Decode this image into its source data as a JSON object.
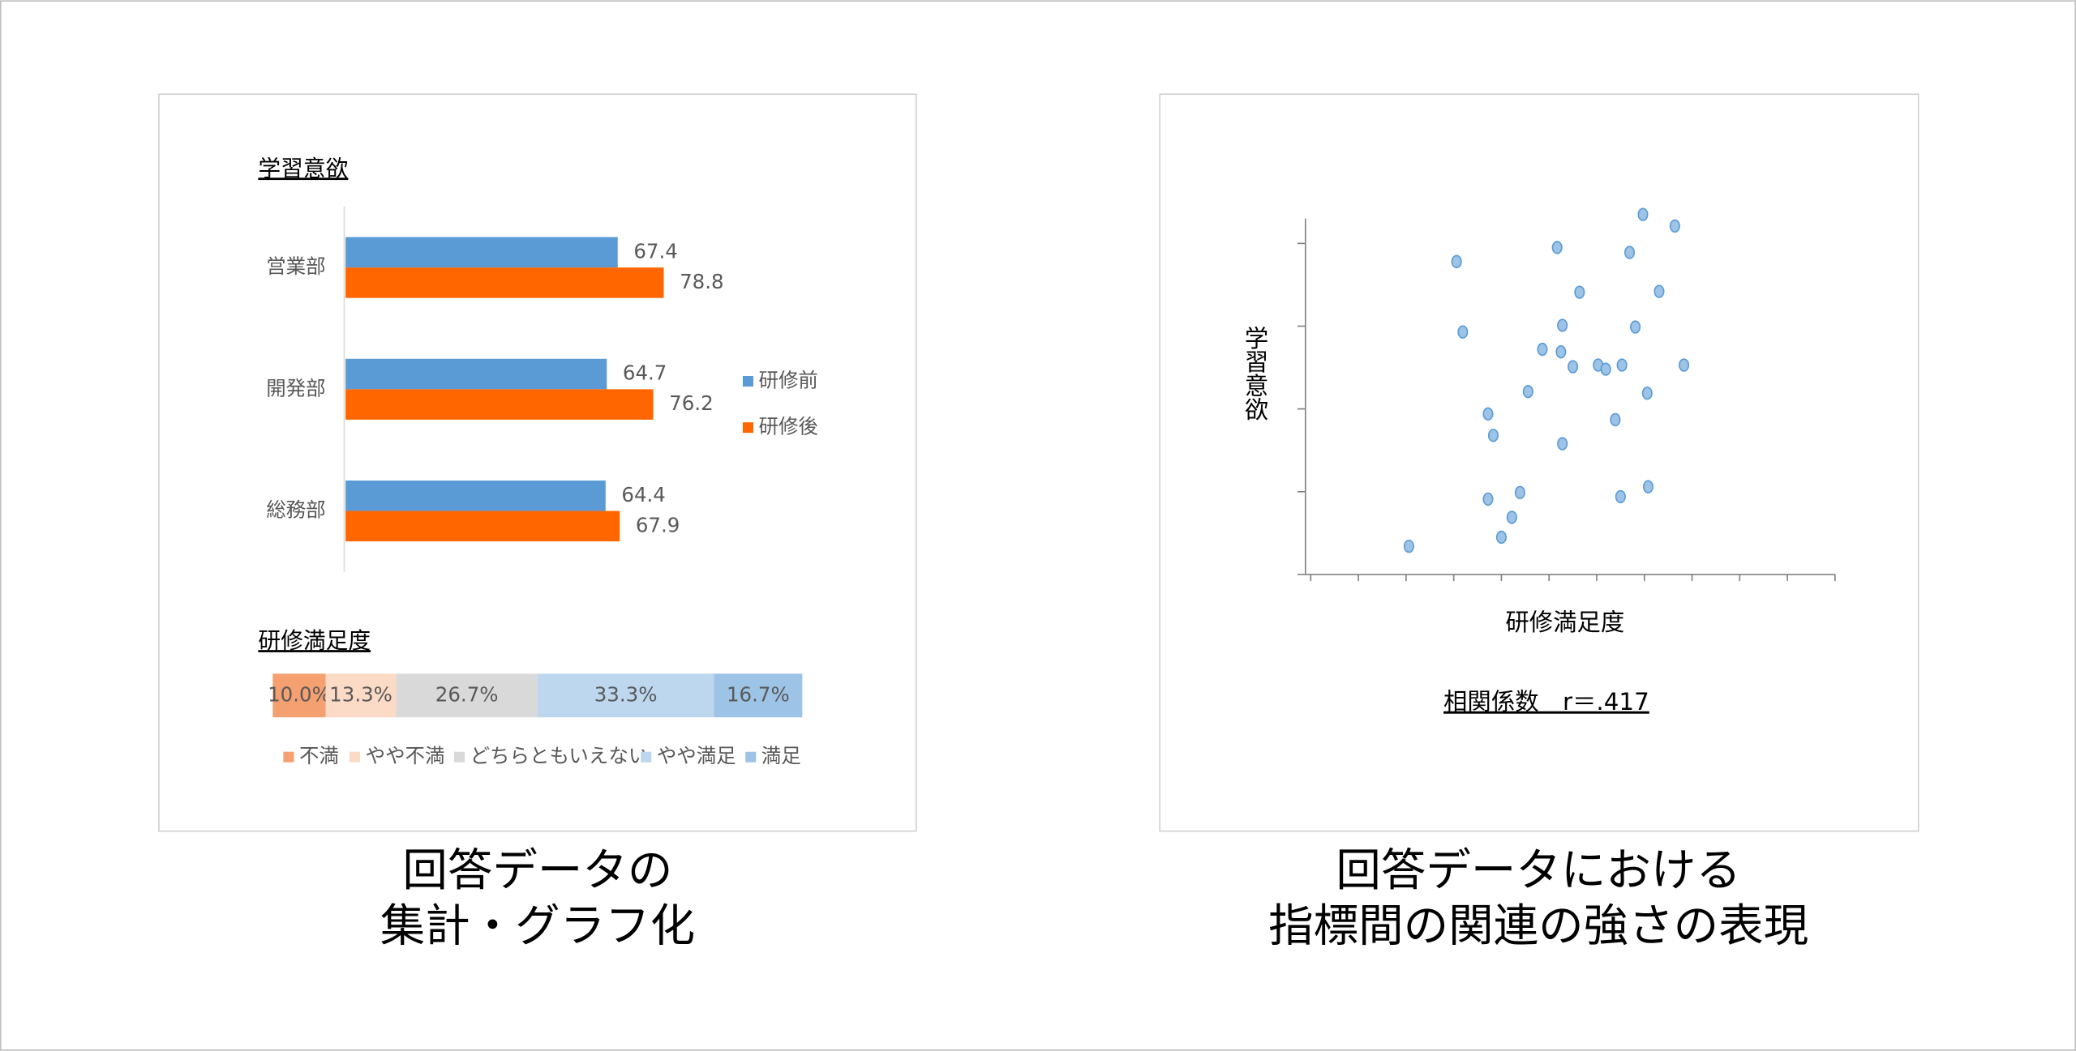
{
  "captions": [
    [
      "回答データの",
      "集計・グラフ化"
    ],
    [
      "回答データにおける",
      "指標間の関連の強さの表現"
    ]
  ],
  "chart_data": [
    {
      "type": "hbar",
      "title": "学習意欲",
      "categories": [
        "営業部",
        "開発部",
        "総務部"
      ],
      "series": [
        {
          "name": "研修前",
          "color": "#5b9bd5",
          "values": [
            67.4,
            64.7,
            64.4
          ]
        },
        {
          "name": "研修後",
          "color": "#ff6600",
          "values": [
            78.8,
            76.2,
            67.9
          ]
        }
      ],
      "xlim": [
        0,
        100
      ],
      "legend": "right"
    },
    {
      "type": "stacked100",
      "title": "研修満足度",
      "series": [
        {
          "name": "不満",
          "color": "#f4a070",
          "values": [
            10.0
          ],
          "value_labels": [
            "10.0%"
          ]
        },
        {
          "name": "やや不満",
          "color": "#fbdac6",
          "values": [
            13.3
          ],
          "value_labels": [
            "13.3%"
          ]
        },
        {
          "name": "どちらともいえない",
          "color": "#d9d9d9",
          "values": [
            26.7
          ],
          "value_labels": [
            "26.7%"
          ]
        },
        {
          "name": "やや満足",
          "color": "#bdd7ee",
          "values": [
            33.3
          ],
          "value_labels": [
            "33.3%"
          ]
        },
        {
          "name": "満足",
          "color": "#9dc3e6",
          "values": [
            16.7
          ],
          "value_labels": [
            "16.7%"
          ]
        }
      ],
      "xlim": [
        0,
        100
      ],
      "legend": "bottom"
    },
    {
      "type": "scatter",
      "x_label": "研修満足度",
      "y_label": "学習意欲",
      "annotation": "相関係数　r＝.417",
      "color": "#9dc3e6",
      "tick_labels": false,
      "xlim": [
        0,
        11
      ],
      "xticks": [
        0,
        1,
        2,
        3,
        4,
        5,
        6,
        7,
        8,
        9,
        10,
        11
      ],
      "ylim": [
        0,
        4.3
      ],
      "yticks": [
        0,
        1,
        2,
        3,
        4
      ],
      "x": [
        2.06,
        3.06,
        3.19,
        3.72,
        3.83,
        3.72,
        4.0,
        4.22,
        4.39,
        4.56,
        4.86,
        5.17,
        5.28,
        5.25,
        5.28,
        5.5,
        5.64,
        6.03,
        6.19,
        6.39,
        6.5,
        6.53,
        6.69,
        6.81,
        6.97,
        7.06,
        7.08,
        7.31,
        7.64,
        7.83
      ],
      "y": [
        0.34,
        3.78,
        2.93,
        1.94,
        1.68,
        0.91,
        0.45,
        0.69,
        0.99,
        2.21,
        2.72,
        3.95,
        3.01,
        2.69,
        1.58,
        2.51,
        3.41,
        2.53,
        2.48,
        1.87,
        0.94,
        2.53,
        3.89,
        2.99,
        4.35,
        2.19,
        1.06,
        3.42,
        4.21,
        2.53
      ]
    }
  ]
}
